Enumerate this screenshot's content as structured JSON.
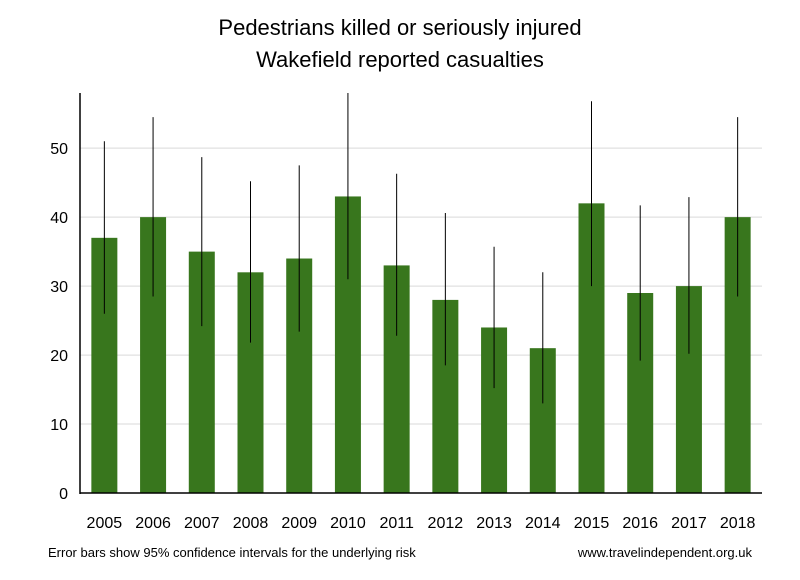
{
  "chart_data": {
    "type": "bar",
    "title": "Pedestrians killed or seriously injured",
    "subtitle": "Wakefield reported casualties",
    "xlabel": "",
    "ylabel": "",
    "categories": [
      "2005",
      "2006",
      "2007",
      "2008",
      "2009",
      "2010",
      "2011",
      "2012",
      "2013",
      "2014",
      "2015",
      "2016",
      "2017",
      "2018"
    ],
    "values": [
      37,
      40,
      35,
      32,
      34,
      43,
      33,
      28,
      24,
      21,
      42,
      29,
      30,
      40
    ],
    "ci_low": [
      26,
      28.5,
      24.2,
      21.8,
      23.4,
      31,
      22.8,
      18.5,
      15.2,
      13,
      30,
      19.2,
      20.2,
      28.5
    ],
    "ci_high": [
      51,
      54.5,
      48.7,
      45.2,
      47.5,
      58,
      46.3,
      40.6,
      35.7,
      32,
      56.8,
      41.7,
      42.9,
      54.5
    ],
    "ylim": [
      0,
      58
    ],
    "yticks": [
      0,
      10,
      20,
      30,
      40,
      50
    ],
    "grid": true,
    "bar_color": "#38761d",
    "grid_color": "#d9d9d9",
    "error_bar_color": "#000000"
  },
  "footer": {
    "note": "Error bars show 95% confidence intervals for the underlying risk",
    "source": "www.travelindependent.org.uk"
  }
}
